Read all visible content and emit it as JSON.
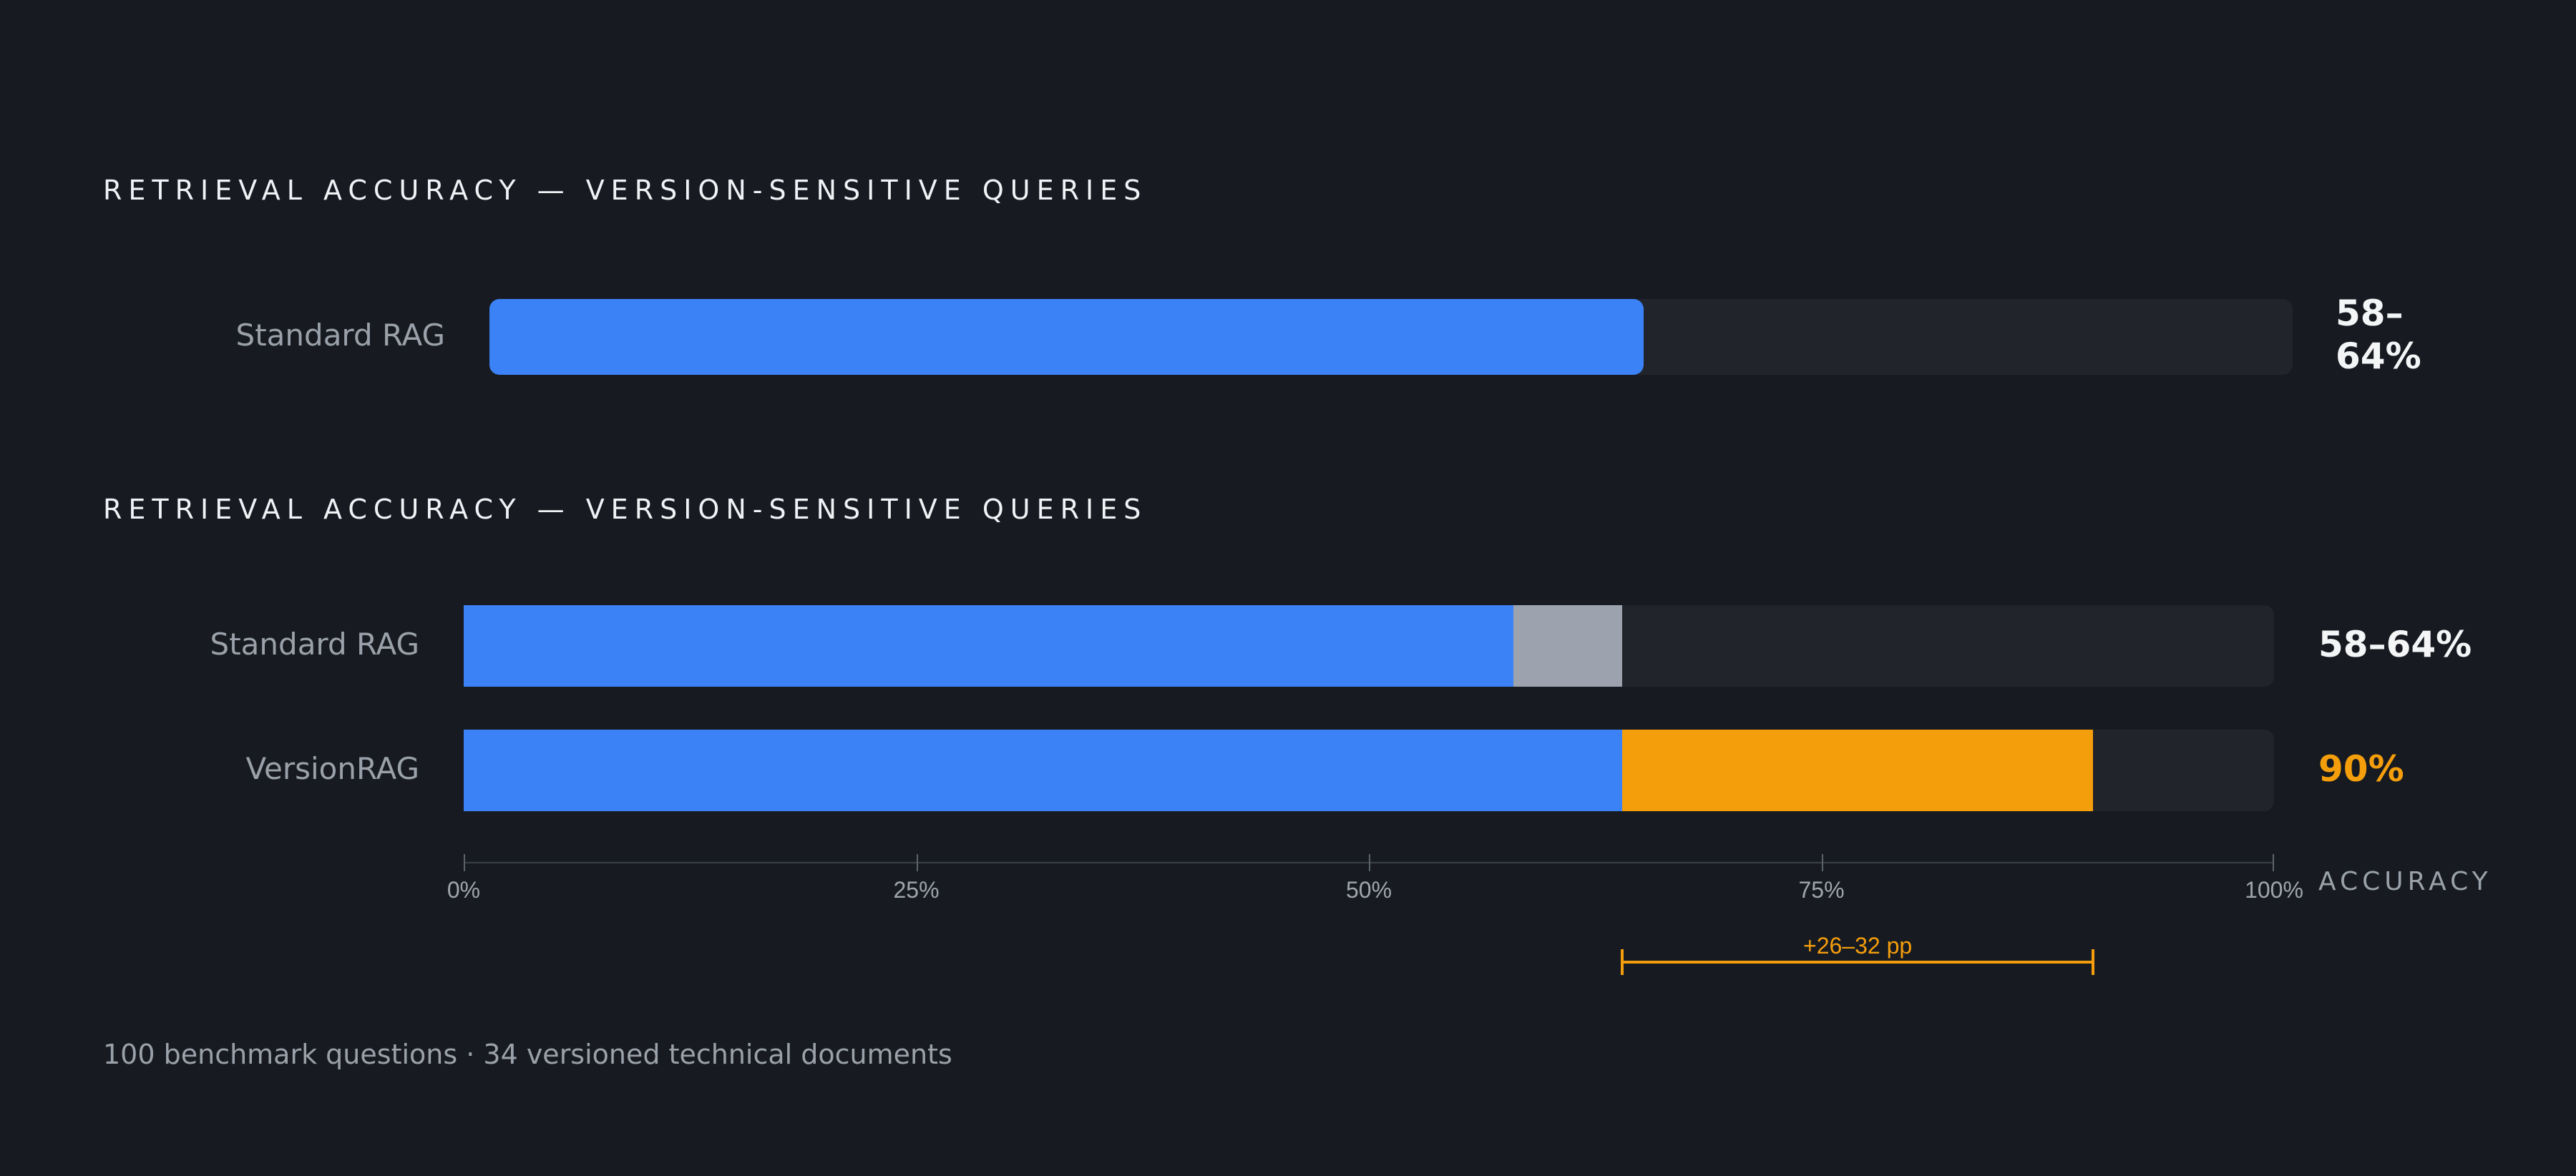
{
  "colors": {
    "background": "#171b21",
    "track": "#21242b",
    "blue": "#3b82f6",
    "gray": "#9ca3af",
    "orange": "#f59e0b",
    "value_text": "#f4f5f7",
    "muted_text": "#9ba1aa"
  },
  "chart_data": [
    {
      "type": "bar",
      "orientation": "horizontal",
      "title": "RETRIEVAL ACCURACY — VERSION-SENSITIVE QUERIES",
      "categories": [
        "Standard RAG"
      ],
      "bars": [
        {
          "label": "Standard RAG",
          "value": 64,
          "value_label": "58–64%",
          "color": "#3b82f6"
        }
      ],
      "xlim": [
        0,
        100
      ]
    },
    {
      "type": "bar",
      "orientation": "horizontal",
      "stacked": true,
      "title": "RETRIEVAL ACCURACY — VERSION-SENSITIVE QUERIES",
      "categories": [
        "Standard RAG",
        "VersionRAG"
      ],
      "bars": [
        {
          "label": "Standard RAG",
          "value_label": "58–64%",
          "value_color": "#f4f5f7",
          "segments": [
            {
              "value": 58,
              "color": "#3b82f6"
            },
            {
              "value": 6,
              "color": "#9ca3af"
            }
          ]
        },
        {
          "label": "VersionRAG",
          "value_label": "90%",
          "value_color": "#f59e0b",
          "segments": [
            {
              "value": 64,
              "color": "#3b82f6"
            },
            {
              "value": 26,
              "color": "#f59e0b"
            }
          ]
        }
      ],
      "xlim": [
        0,
        100
      ],
      "x_ticks": [
        0,
        25,
        50,
        75,
        100
      ],
      "x_tick_labels": [
        "0%",
        "25%",
        "50%",
        "75%",
        "100%"
      ],
      "xlabel": "ACCURACY",
      "annotation": {
        "from": 64,
        "to": 90,
        "label": "+26–32 pp",
        "color": "#f59e0b"
      }
    }
  ],
  "footnote": "100 benchmark questions · 34 versioned technical documents"
}
